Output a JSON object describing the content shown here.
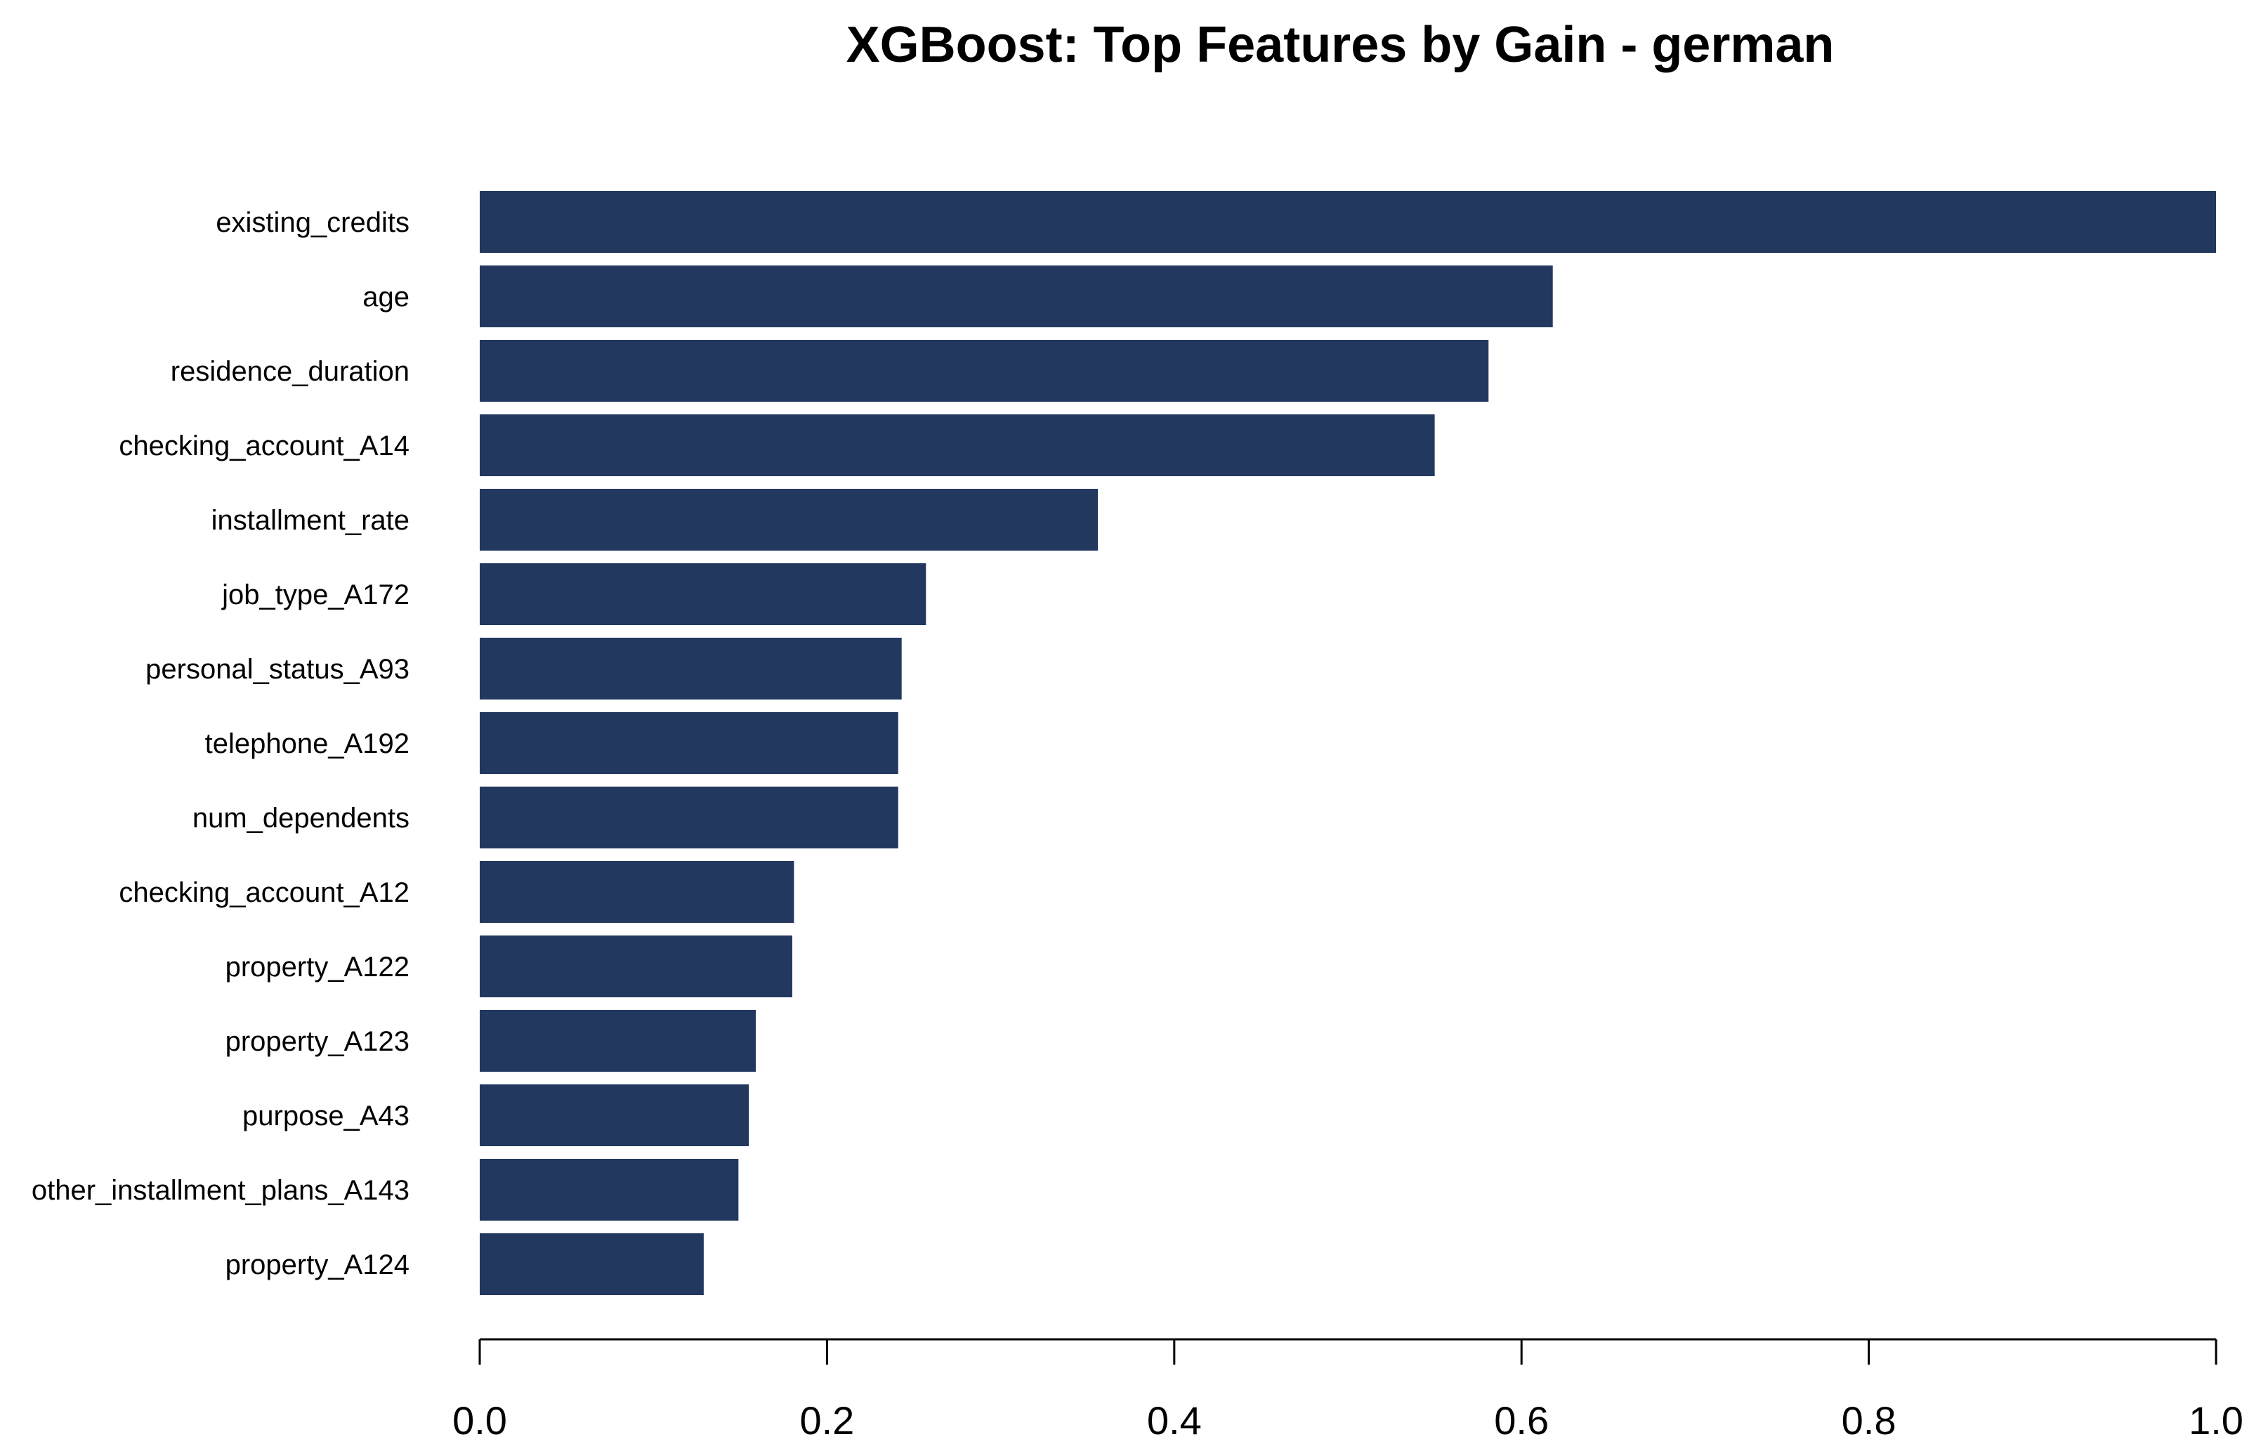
{
  "chart_data": {
    "type": "bar",
    "orientation": "horizontal",
    "title": "XGBoost: Top Features by Gain - german",
    "xlabel": "",
    "ylabel": "",
    "categories": [
      "existing_credits",
      "age",
      "residence_duration",
      "checking_account_A14",
      "installment_rate",
      "job_type_A172",
      "personal_status_A93",
      "telephone_A192",
      "num_dependents",
      "checking_account_A12",
      "property_A122",
      "property_A123",
      "purpose_A43",
      "other_installment_plans_A143",
      "property_A124"
    ],
    "values": [
      1.0,
      0.618,
      0.581,
      0.55,
      0.356,
      0.257,
      0.243,
      0.241,
      0.241,
      0.181,
      0.18,
      0.159,
      0.155,
      0.149,
      0.129
    ],
    "xlim": [
      0,
      1.0
    ],
    "xticks": [
      "0.0",
      "0.2",
      "0.4",
      "0.6",
      "0.8",
      "1.0"
    ],
    "bar_color": "#22385F",
    "grid": false,
    "legend": "none"
  }
}
